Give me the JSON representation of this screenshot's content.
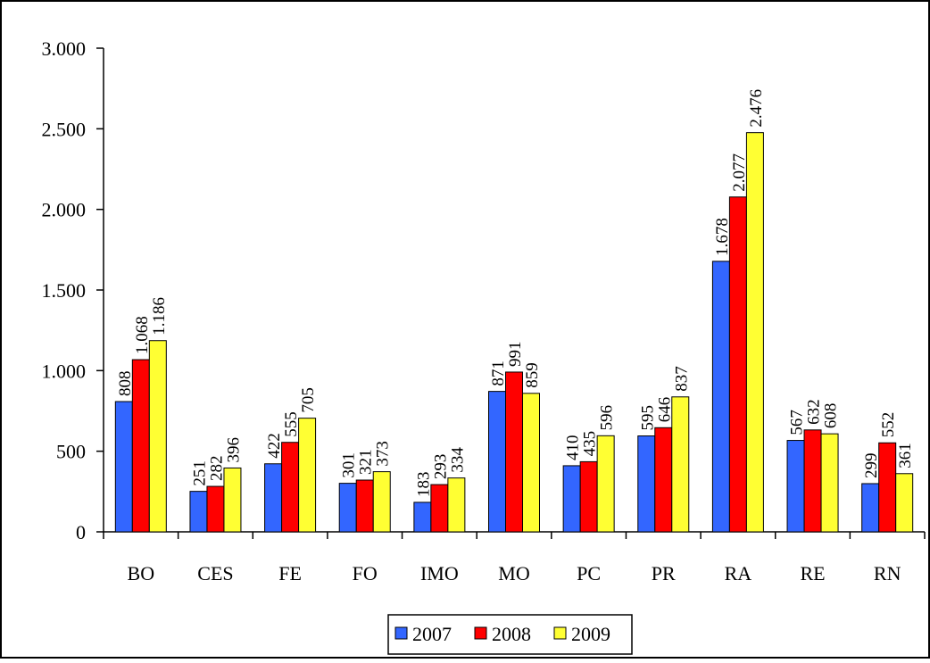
{
  "chart_data": {
    "type": "bar",
    "title": "",
    "xlabel": "",
    "ylabel": "",
    "ylim": [
      0,
      3000
    ],
    "yticks": [
      {
        "value": 0,
        "label": "0"
      },
      {
        "value": 500,
        "label": "500"
      },
      {
        "value": 1000,
        "label": "1.000"
      },
      {
        "value": 1500,
        "label": "1.500"
      },
      {
        "value": 2000,
        "label": "2.000"
      },
      {
        "value": 2500,
        "label": "2.500"
      },
      {
        "value": 3000,
        "label": "3.000"
      }
    ],
    "grid": false,
    "legend_position": "bottom",
    "categories": [
      "BO",
      "CES",
      "FE",
      "FO",
      "IMO",
      "MO",
      "PC",
      "PR",
      "RA",
      "RE",
      "RN"
    ],
    "series": [
      {
        "name": "2007",
        "color": "#3366ff",
        "values": [
          808,
          251,
          422,
          301,
          183,
          871,
          410,
          595,
          1678,
          567,
          299
        ],
        "labels": [
          "808",
          "251",
          "422",
          "301",
          "183",
          "871",
          "410",
          "595",
          "1.678",
          "567",
          "299"
        ]
      },
      {
        "name": "2008",
        "color": "#ff0000",
        "values": [
          1068,
          282,
          555,
          321,
          293,
          991,
          435,
          646,
          2077,
          632,
          552
        ],
        "labels": [
          "1.068",
          "282",
          "555",
          "321",
          "293",
          "991",
          "435",
          "646",
          "2.077",
          "632",
          "552"
        ]
      },
      {
        "name": "2009",
        "color": "#ffff33",
        "values": [
          1186,
          396,
          705,
          373,
          334,
          859,
          596,
          837,
          2476,
          608,
          361
        ],
        "labels": [
          "1.186",
          "396",
          "705",
          "373",
          "334",
          "859",
          "596",
          "837",
          "2.476",
          "608",
          "361"
        ]
      }
    ]
  }
}
